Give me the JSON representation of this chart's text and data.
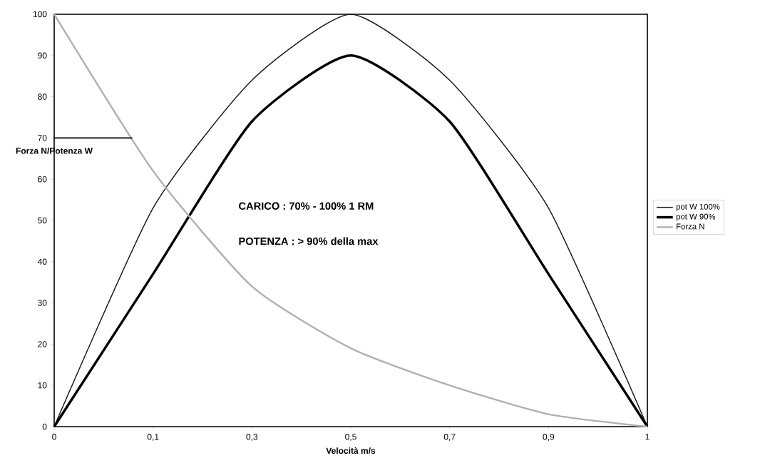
{
  "chart_data": {
    "type": "line",
    "xlabel": "Velocità m/s",
    "ylabel": "Forza N/Potenza W",
    "categories": [
      "0",
      "0,1",
      "0,3",
      "0,5",
      "0,7",
      "0,9",
      "1"
    ],
    "series": [
      {
        "name": "pot W 100%",
        "color": "#1a1a1a",
        "values": [
          0,
          53,
          84,
          100,
          84,
          53,
          0
        ]
      },
      {
        "name": "pot W 90%",
        "color": "#000000",
        "values": [
          0,
          37,
          74,
          90,
          74,
          37,
          0
        ]
      },
      {
        "name": "Forza N",
        "color": "#b0b0b0",
        "values": [
          100,
          62,
          34,
          19,
          10,
          3,
          0
        ]
      }
    ],
    "ylim": [
      0,
      100
    ],
    "yticks": [
      0,
      10,
      20,
      30,
      40,
      50,
      60,
      70,
      80,
      90,
      100
    ],
    "ref_lines": [
      {
        "axis": "y",
        "value": 70
      }
    ],
    "annotations": [
      "CARICO : 70% - 100%  1 RM",
      "POTENZA : > 90% della max"
    ],
    "grid": false,
    "legend": "right",
    "marker": "none",
    "line_style": "solid"
  }
}
